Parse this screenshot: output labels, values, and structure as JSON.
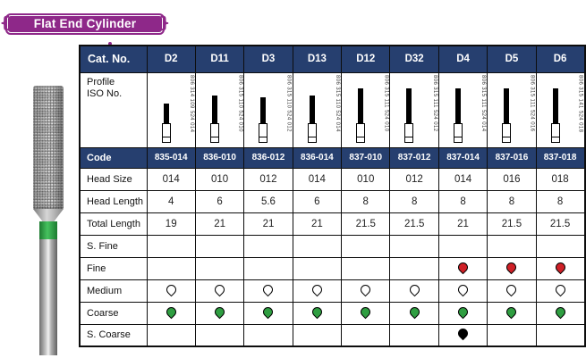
{
  "banner": {
    "title": "Flat End Cylinder",
    "bg_color": "#8e2889"
  },
  "table": {
    "header": {
      "cat_no_label": "Cat. No.",
      "bg_color": "#263f6f",
      "columns": [
        "D2",
        "D11",
        "D3",
        "D13",
        "D12",
        "D32",
        "D4",
        "D5",
        "D6"
      ]
    },
    "profile": {
      "label_line1": "Profile",
      "label_line2": "ISO No.",
      "iso_numbers": [
        "806 314 109 524 014",
        "806 315 110 524 010",
        "806 315 110 524 012",
        "806 315 110 524 014",
        "806 315 111 524 010",
        "806 315 111 524 012",
        "806 315 111 524 014",
        "806 315 111 524 016",
        "806 315 141 524 018"
      ]
    },
    "code": {
      "label": "Code",
      "values": [
        "835-014",
        "836-010",
        "836-012",
        "836-014",
        "837-010",
        "837-012",
        "837-014",
        "837-016",
        "837-018"
      ]
    },
    "head_size": {
      "label": "Head Size",
      "values": [
        "014",
        "010",
        "012",
        "014",
        "010",
        "012",
        "014",
        "016",
        "018"
      ]
    },
    "head_length": {
      "label": "Head Length",
      "values": [
        "4",
        "6",
        "5.6",
        "6",
        "8",
        "8",
        "8",
        "8",
        "8"
      ]
    },
    "total_length": {
      "label": "Total Length",
      "values": [
        "19",
        "21",
        "21",
        "21",
        "21.5",
        "21.5",
        "21",
        "21.5",
        "21.5"
      ]
    },
    "grit_rows": [
      {
        "label": "S. Fine",
        "values": [
          "",
          "",
          "",
          "",
          "",
          "",
          "",
          "",
          ""
        ]
      },
      {
        "label": "Fine",
        "values": [
          "",
          "",
          "",
          "",
          "",
          "",
          "red",
          "red",
          "red"
        ]
      },
      {
        "label": "Medium",
        "values": [
          "white",
          "white",
          "white",
          "white",
          "white",
          "white",
          "white",
          "white",
          "white"
        ]
      },
      {
        "label": "Coarse",
        "values": [
          "green",
          "green",
          "green",
          "green",
          "green",
          "green",
          "green",
          "green",
          "green"
        ]
      },
      {
        "label": "S. Coarse",
        "values": [
          "",
          "",
          "",
          "",
          "",
          "",
          "black",
          "",
          ""
        ]
      }
    ],
    "grit_colors": {
      "red": "#cf2027",
      "green": "#2f9e41",
      "white": "#ffffff",
      "black": "#000000"
    }
  },
  "product_photo": {
    "description": "diamond bur with green grit band",
    "band_color": "#2f9e41"
  }
}
